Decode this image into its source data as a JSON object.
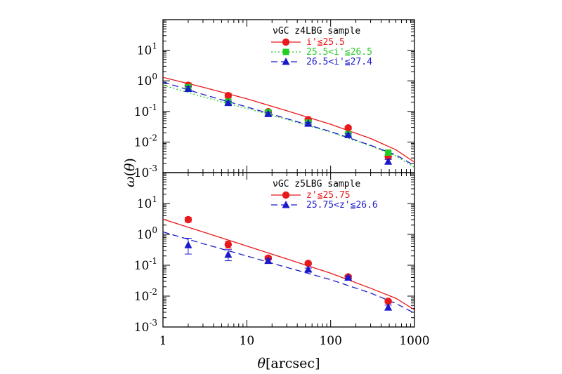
{
  "chart_data": [
    {
      "type": "line",
      "panel": "top",
      "legend_title": "νGC z4LBG sample",
      "legend_placement": "top-right",
      "xscale": "log",
      "yscale": "log",
      "xlim": [
        1,
        1000
      ],
      "ylim": [
        0.001,
        100
      ],
      "x_ticks": [
        {
          "value": 1,
          "label": "1"
        },
        {
          "value": 10,
          "label": "10"
        },
        {
          "value": 100,
          "label": "100"
        },
        {
          "value": 1000,
          "label": "1000"
        }
      ],
      "y_ticks": [
        {
          "value": 10,
          "base": "10",
          "exp": "1"
        },
        {
          "value": 1,
          "base": "10",
          "exp": "0"
        },
        {
          "value": 0.1,
          "base": "10",
          "exp": "-1"
        },
        {
          "value": 0.01,
          "base": "10",
          "exp": "-2"
        },
        {
          "value": 0.001,
          "base": "10",
          "exp": "-3"
        }
      ],
      "series": [
        {
          "name": "i'≦25.5",
          "color": "#e8191c",
          "marker": "circle",
          "line_style": "solid",
          "points": [
            {
              "x": 2.0,
              "y": 0.72,
              "err_lo": 0.6,
              "err_hi": 0.85
            },
            {
              "x": 6.0,
              "y": 0.33,
              "err_lo": 0.28,
              "err_hi": 0.38
            },
            {
              "x": 18.0,
              "y": 0.098,
              "err_lo": 0.088,
              "err_hi": 0.108
            },
            {
              "x": 54.0,
              "y": 0.054,
              "err_lo": 0.049,
              "err_hi": 0.059
            },
            {
              "x": 162.0,
              "y": 0.029,
              "err_lo": 0.026,
              "err_hi": 0.032
            },
            {
              "x": 486.0,
              "y": 0.0033,
              "err_lo": 0.0027,
              "err_hi": 0.0039
            }
          ],
          "model": [
            [
              1,
              1.3
            ],
            [
              3,
              0.62
            ],
            [
              10,
              0.26
            ],
            [
              30,
              0.105
            ],
            [
              100,
              0.038
            ],
            [
              300,
              0.013
            ],
            [
              600,
              0.0056
            ],
            [
              1000,
              0.0022
            ]
          ]
        },
        {
          "name": "25.5<i'≦26.5",
          "color": "#22cc22",
          "marker": "square",
          "line_style": "dotted",
          "points": [
            {
              "x": 2.0,
              "y": 0.62,
              "err_lo": 0.52,
              "err_hi": 0.74
            },
            {
              "x": 6.0,
              "y": 0.21,
              "err_lo": 0.18,
              "err_hi": 0.24
            },
            {
              "x": 18.0,
              "y": 0.095,
              "err_lo": 0.085,
              "err_hi": 0.105
            },
            {
              "x": 54.0,
              "y": 0.043,
              "err_lo": 0.039,
              "err_hi": 0.047
            },
            {
              "x": 162.0,
              "y": 0.018,
              "err_lo": 0.016,
              "err_hi": 0.02
            },
            {
              "x": 486.0,
              "y": 0.0045,
              "err_lo": 0.004,
              "err_hi": 0.005
            }
          ],
          "model": [
            [
              1,
              0.72
            ],
            [
              3,
              0.3
            ],
            [
              10,
              0.125
            ],
            [
              30,
              0.055
            ],
            [
              100,
              0.021
            ],
            [
              300,
              0.0075
            ],
            [
              600,
              0.0035
            ],
            [
              1000,
              0.0015
            ]
          ]
        },
        {
          "name": "26.5<i'≦27.4",
          "color": "#1a1acc",
          "marker": "triangle",
          "line_style": "dashed",
          "points": [
            {
              "x": 2.0,
              "y": 0.55,
              "err_lo": 0.46,
              "err_hi": 0.65
            },
            {
              "x": 6.0,
              "y": 0.19,
              "err_lo": 0.165,
              "err_hi": 0.215
            },
            {
              "x": 18.0,
              "y": 0.083,
              "err_lo": 0.073,
              "err_hi": 0.093
            },
            {
              "x": 54.0,
              "y": 0.04,
              "err_lo": 0.036,
              "err_hi": 0.044
            },
            {
              "x": 162.0,
              "y": 0.017,
              "err_lo": 0.0155,
              "err_hi": 0.0185
            },
            {
              "x": 486.0,
              "y": 0.0023,
              "err_lo": 0.0019,
              "err_hi": 0.0027
            }
          ],
          "model": [
            [
              1,
              0.92
            ],
            [
              3,
              0.36
            ],
            [
              10,
              0.14
            ],
            [
              30,
              0.058
            ],
            [
              100,
              0.022
            ],
            [
              300,
              0.0078
            ],
            [
              600,
              0.0038
            ],
            [
              1000,
              0.0017
            ]
          ]
        }
      ]
    },
    {
      "type": "line",
      "panel": "bottom",
      "legend_title": "νGC z5LBG sample",
      "legend_placement": "top-right",
      "xscale": "log",
      "yscale": "log",
      "xlim": [
        1,
        1000
      ],
      "ylim": [
        0.001,
        100
      ],
      "x_ticks": [
        {
          "value": 1,
          "label": "1"
        },
        {
          "value": 10,
          "label": "10"
        },
        {
          "value": 100,
          "label": "100"
        },
        {
          "value": 1000,
          "label": "1000"
        }
      ],
      "y_ticks": [
        {
          "value": 10,
          "base": "10",
          "exp": "1"
        },
        {
          "value": 1,
          "base": "10",
          "exp": "0"
        },
        {
          "value": 0.1,
          "base": "10",
          "exp": "-1"
        },
        {
          "value": 0.01,
          "base": "10",
          "exp": "-2"
        },
        {
          "value": 0.001,
          "base": "10",
          "exp": "-3"
        }
      ],
      "series": [
        {
          "name": "z'≦25.75",
          "color": "#e8191c",
          "marker": "circle",
          "line_style": "solid",
          "points": [
            {
              "x": 2.0,
              "y": 3.0,
              "err_lo": 2.5,
              "err_hi": 3.6
            },
            {
              "x": 6.0,
              "y": 0.47,
              "err_lo": 0.36,
              "err_hi": 0.6
            },
            {
              "x": 18.0,
              "y": 0.17,
              "err_lo": 0.15,
              "err_hi": 0.19
            },
            {
              "x": 54.0,
              "y": 0.115,
              "err_lo": 0.102,
              "err_hi": 0.128
            },
            {
              "x": 162.0,
              "y": 0.042,
              "err_lo": 0.037,
              "err_hi": 0.047
            },
            {
              "x": 486.0,
              "y": 0.0068,
              "err_lo": 0.006,
              "err_hi": 0.0076
            }
          ],
          "model": [
            [
              1,
              3.1
            ],
            [
              3,
              1.2
            ],
            [
              10,
              0.42
            ],
            [
              30,
              0.16
            ],
            [
              100,
              0.055
            ],
            [
              300,
              0.018
            ],
            [
              600,
              0.0085
            ],
            [
              1000,
              0.0036
            ]
          ]
        },
        {
          "name": "25.75<z'≦26.6",
          "color": "#1a1acc",
          "marker": "triangle",
          "line_style": "dashed",
          "points": [
            {
              "x": 2.0,
              "y": 0.45,
              "err_lo": 0.23,
              "err_hi": 0.75
            },
            {
              "x": 6.0,
              "y": 0.22,
              "err_lo": 0.14,
              "err_hi": 0.32
            },
            {
              "x": 18.0,
              "y": 0.14,
              "err_lo": 0.12,
              "err_hi": 0.16
            },
            {
              "x": 54.0,
              "y": 0.073,
              "err_lo": 0.065,
              "err_hi": 0.081
            },
            {
              "x": 162.0,
              "y": 0.04,
              "err_lo": 0.036,
              "err_hi": 0.044
            },
            {
              "x": 486.0,
              "y": 0.0043,
              "err_lo": 0.0035,
              "err_hi": 0.0051
            }
          ],
          "model": [
            [
              1,
              1.2
            ],
            [
              3,
              0.5
            ],
            [
              10,
              0.2
            ],
            [
              30,
              0.085
            ],
            [
              100,
              0.034
            ],
            [
              300,
              0.0125
            ],
            [
              600,
              0.0058
            ],
            [
              1000,
              0.0028
            ]
          ]
        }
      ]
    }
  ],
  "labels": {
    "ylabel_func": "ω",
    "ylabel_arg": "θ",
    "xlabel_var": "θ",
    "xlabel_unit": "arcsec"
  }
}
